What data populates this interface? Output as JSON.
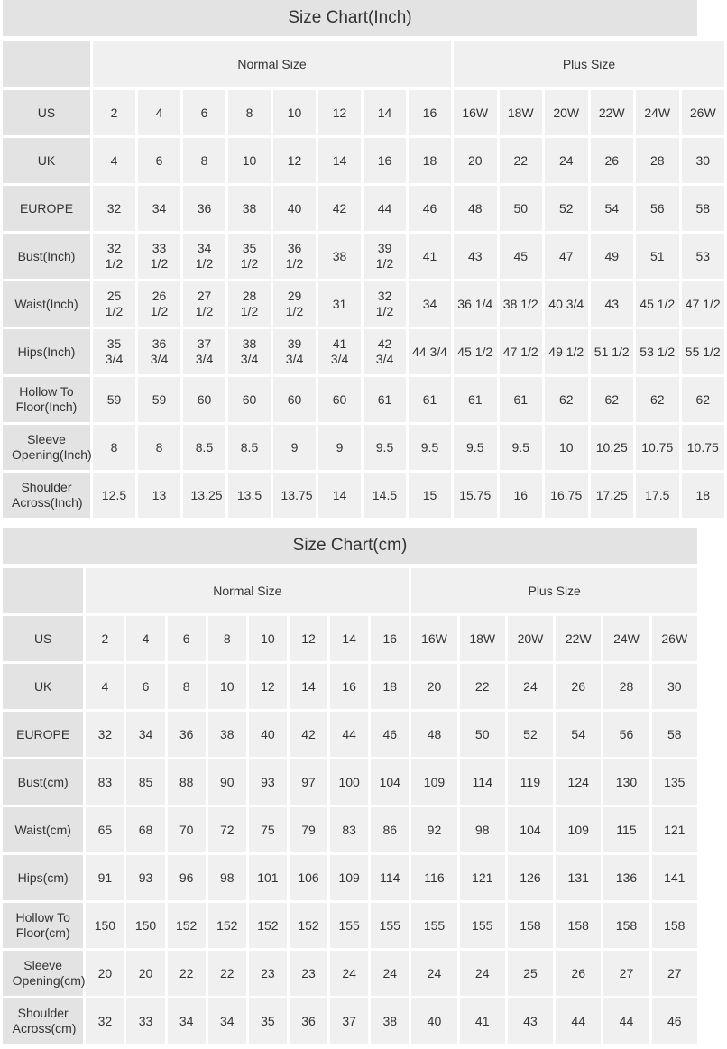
{
  "colors": {
    "title_bg": "#e3e3e3",
    "label_bg": "#e3e3e3",
    "cell_bg": "#f0f0f0",
    "text": "#333333"
  },
  "tables": [
    {
      "title": "Size Chart(Inch)",
      "group_headers": [
        "Normal Size",
        "Plus Size"
      ],
      "rows": [
        {
          "label": "US",
          "values": [
            "2",
            "4",
            "6",
            "8",
            "10",
            "12",
            "14",
            "16",
            "16W",
            "18W",
            "20W",
            "22W",
            "24W",
            "26W"
          ]
        },
        {
          "label": "UK",
          "values": [
            "4",
            "6",
            "8",
            "10",
            "12",
            "14",
            "16",
            "18",
            "20",
            "22",
            "24",
            "26",
            "28",
            "30"
          ]
        },
        {
          "label": "EUROPE",
          "values": [
            "32",
            "34",
            "36",
            "38",
            "40",
            "42",
            "44",
            "46",
            "48",
            "50",
            "52",
            "54",
            "56",
            "58"
          ]
        },
        {
          "label": "Bust(Inch)",
          "values": [
            "32 1/2",
            "33 1/2",
            "34 1/2",
            "35 1/2",
            "36 1/2",
            "38",
            "39 1/2",
            "41",
            "43",
            "45",
            "47",
            "49",
            "51",
            "53"
          ]
        },
        {
          "label": "Waist(Inch)",
          "values": [
            "25 1/2",
            "26 1/2",
            "27 1/2",
            "28 1/2",
            "29 1/2",
            "31",
            "32 1/2",
            "34",
            "36 1/4",
            "38 1/2",
            "40 3/4",
            "43",
            "45 1/2",
            "47 1/2"
          ]
        },
        {
          "label": "Hips(Inch)",
          "values": [
            "35 3/4",
            "36 3/4",
            "37 3/4",
            "38 3/4",
            "39 3/4",
            "41 3/4",
            "42 3/4",
            "44 3/4",
            "45 1/2",
            "47 1/2",
            "49 1/2",
            "51 1/2",
            "53 1/2",
            "55 1/2"
          ]
        },
        {
          "label": "Hollow To Floor(Inch)",
          "values": [
            "59",
            "59",
            "60",
            "60",
            "60",
            "60",
            "61",
            "61",
            "61",
            "61",
            "62",
            "62",
            "62",
            "62"
          ]
        },
        {
          "label": "Sleeve Opening(Inch)",
          "values": [
            "8",
            "8",
            "8.5",
            "8.5",
            "9",
            "9",
            "9.5",
            "9.5",
            "9.5",
            "9.5",
            "10",
            "10.25",
            "10.75",
            "10.75"
          ]
        },
        {
          "label": "Shoulder Across(Inch)",
          "values": [
            "12.5",
            "13",
            "13.25",
            "13.5",
            "13.75",
            "14",
            "14.5",
            "15",
            "15.75",
            "16",
            "16.75",
            "17.25",
            "17.5",
            "18"
          ]
        }
      ]
    },
    {
      "title": "Size Chart(cm)",
      "group_headers": [
        "Normal Size",
        "Plus Size"
      ],
      "rows": [
        {
          "label": "US",
          "values": [
            "2",
            "4",
            "6",
            "8",
            "10",
            "12",
            "14",
            "16",
            "16W",
            "18W",
            "20W",
            "22W",
            "24W",
            "26W"
          ]
        },
        {
          "label": "UK",
          "values": [
            "4",
            "6",
            "8",
            "10",
            "12",
            "14",
            "16",
            "18",
            "20",
            "22",
            "24",
            "26",
            "28",
            "30"
          ]
        },
        {
          "label": "EUROPE",
          "values": [
            "32",
            "34",
            "36",
            "38",
            "40",
            "42",
            "44",
            "46",
            "48",
            "50",
            "52",
            "54",
            "56",
            "58"
          ]
        },
        {
          "label": "Bust(cm)",
          "values": [
            "83",
            "85",
            "88",
            "90",
            "93",
            "97",
            "100",
            "104",
            "109",
            "114",
            "119",
            "124",
            "130",
            "135"
          ]
        },
        {
          "label": "Waist(cm)",
          "values": [
            "65",
            "68",
            "70",
            "72",
            "75",
            "79",
            "83",
            "86",
            "92",
            "98",
            "104",
            "109",
            "115",
            "121"
          ]
        },
        {
          "label": "Hips(cm)",
          "values": [
            "91",
            "93",
            "96",
            "98",
            "101",
            "106",
            "109",
            "114",
            "116",
            "121",
            "126",
            "131",
            "136",
            "141"
          ]
        },
        {
          "label": "Hollow To Floor(cm)",
          "values": [
            "150",
            "150",
            "152",
            "152",
            "152",
            "152",
            "155",
            "155",
            "155",
            "155",
            "158",
            "158",
            "158",
            "158"
          ]
        },
        {
          "label": "Sleeve Opening(cm)",
          "values": [
            "20",
            "20",
            "22",
            "22",
            "23",
            "23",
            "24",
            "24",
            "24",
            "24",
            "25",
            "26",
            "27",
            "27"
          ]
        },
        {
          "label": "Shoulder Across(cm)",
          "values": [
            "32",
            "33",
            "34",
            "34",
            "35",
            "36",
            "37",
            "38",
            "40",
            "41",
            "43",
            "44",
            "44",
            "46"
          ]
        }
      ]
    }
  ]
}
